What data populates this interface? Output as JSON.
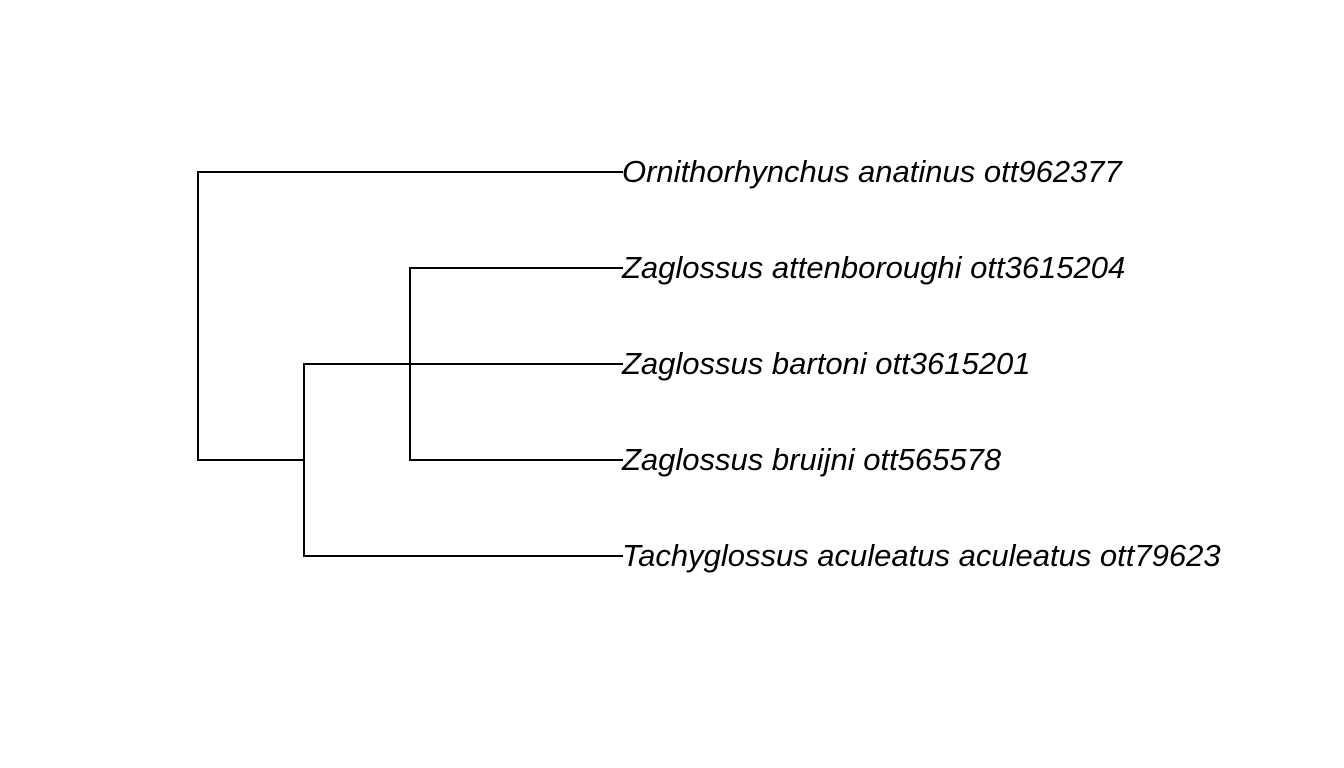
{
  "tree": {
    "type": "phylogram",
    "line_color": "#000000",
    "label_style": "italic",
    "tips": [
      {
        "id": "t1",
        "label": "Ornithorhynchus anatinus ott962377"
      },
      {
        "id": "t2",
        "label": "Zaglossus attenboroughi ott3615204"
      },
      {
        "id": "t3",
        "label": "Zaglossus bartoni ott3615201"
      },
      {
        "id": "t4",
        "label": "Zaglossus bruijni ott565578"
      },
      {
        "id": "t5",
        "label": "Tachyglossus aculeatus aculeatus ott79623"
      }
    ],
    "clades": [
      {
        "id": "root",
        "children": [
          "t1",
          "n_tachy"
        ]
      },
      {
        "id": "n_tachy",
        "children": [
          "n_zag",
          "t5"
        ]
      },
      {
        "id": "n_zag",
        "children": [
          "t2",
          "t3",
          "t4"
        ]
      }
    ]
  }
}
